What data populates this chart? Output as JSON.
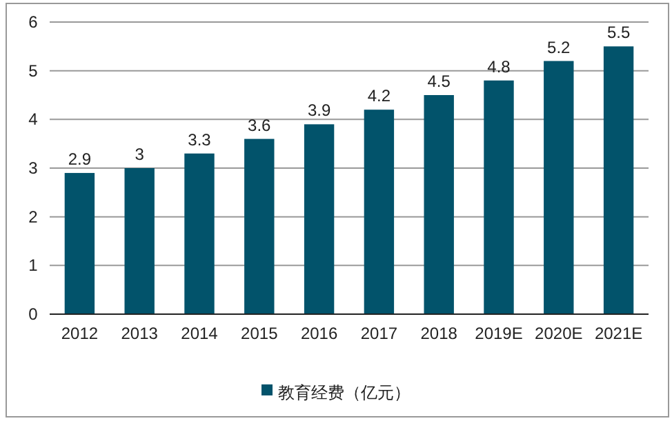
{
  "chart_data": {
    "type": "bar",
    "categories": [
      "2012",
      "2013",
      "2014",
      "2015",
      "2016",
      "2017",
      "2018",
      "2019E",
      "2020E",
      "2021E"
    ],
    "series": [
      {
        "name": "教育经费（亿元）",
        "color": "#02536b",
        "values": [
          2.9,
          3,
          3.3,
          3.6,
          3.9,
          4.2,
          4.5,
          4.8,
          5.2,
          5.5
        ]
      }
    ],
    "ylim": [
      0,
      6
    ],
    "yticks": [
      0,
      1,
      2,
      3,
      4,
      5,
      6
    ],
    "grid": "y",
    "legend": "bottom",
    "data_labels": true
  }
}
